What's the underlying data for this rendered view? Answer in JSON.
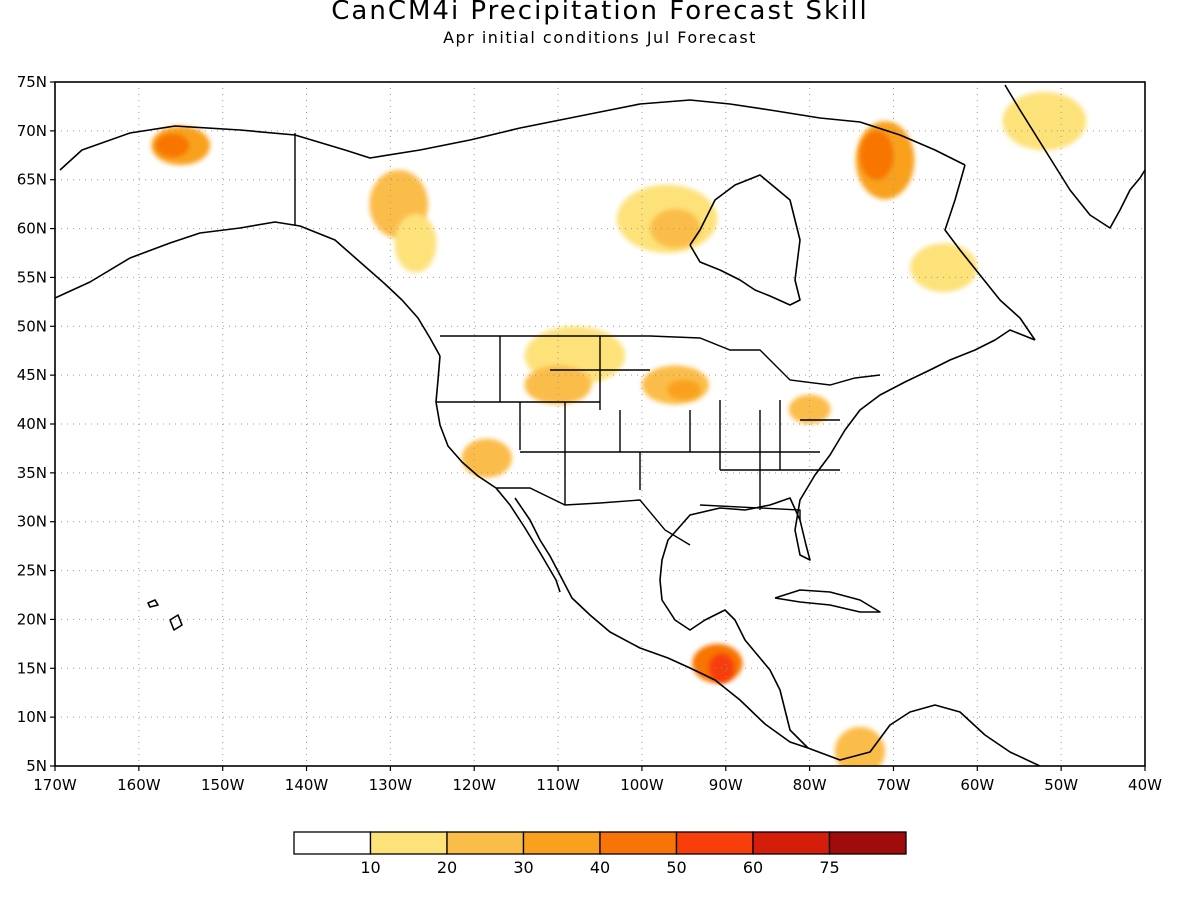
{
  "title": "CanCM4i Precipitation Forecast Skill",
  "subtitle": "Apr initial conditions   Jul Forecast",
  "map": {
    "lon_range": [
      -170,
      -40
    ],
    "lat_range": [
      5,
      75
    ],
    "lon_tick_labels": [
      "170W",
      "160W",
      "150W",
      "140W",
      "130W",
      "120W",
      "110W",
      "100W",
      "90W",
      "80W",
      "70W",
      "60W",
      "50W",
      "40W"
    ],
    "lat_tick_labels": [
      "5N",
      "10N",
      "15N",
      "20N",
      "25N",
      "30N",
      "35N",
      "40N",
      "45N",
      "50N",
      "55N",
      "60N",
      "65N",
      "70N",
      "75N"
    ],
    "grid": "dotted"
  },
  "colorbar": {
    "labels": [
      "10",
      "20",
      "30",
      "40",
      "50",
      "60",
      "75"
    ],
    "colors": [
      "#ffffff",
      "#fde27a",
      "#fbbd4a",
      "#f9a11c",
      "#f87406",
      "#f83e0a",
      "#d41e0a",
      "#a00b0b"
    ]
  },
  "skill_regions": [
    {
      "lon": -155,
      "lat": 68.5,
      "rx": 3.5,
      "ry": 2.0,
      "level": 3
    },
    {
      "lon": -156,
      "lat": 68.5,
      "rx": 2.0,
      "ry": 1.2,
      "level": 4
    },
    {
      "lon": -129,
      "lat": 62.5,
      "rx": 3.5,
      "ry": 3.5,
      "level": 2
    },
    {
      "lon": -127,
      "lat": 58.5,
      "rx": 2.5,
      "ry": 3.0,
      "level": 1
    },
    {
      "lon": -97,
      "lat": 61,
      "rx": 6,
      "ry": 3.5,
      "level": 1
    },
    {
      "lon": -96,
      "lat": 60,
      "rx": 3,
      "ry": 2,
      "level": 2
    },
    {
      "lon": -71,
      "lat": 67,
      "rx": 3.5,
      "ry": 4.0,
      "level": 3
    },
    {
      "lon": -72,
      "lat": 67.5,
      "rx": 2,
      "ry": 2.5,
      "level": 4
    },
    {
      "lon": -64,
      "lat": 56,
      "rx": 4,
      "ry": 2.5,
      "level": 1
    },
    {
      "lon": -108,
      "lat": 47,
      "rx": 6,
      "ry": 3,
      "level": 1
    },
    {
      "lon": -110,
      "lat": 44,
      "rx": 4,
      "ry": 2,
      "level": 2
    },
    {
      "lon": -96,
      "lat": 44,
      "rx": 4,
      "ry": 2,
      "level": 2
    },
    {
      "lon": -95,
      "lat": 43.5,
      "rx": 2,
      "ry": 1,
      "level": 3
    },
    {
      "lon": -118.5,
      "lat": 36.5,
      "rx": 3,
      "ry": 2,
      "level": 2
    },
    {
      "lon": -80,
      "lat": 41.5,
      "rx": 2.5,
      "ry": 1.5,
      "level": 2
    },
    {
      "lon": -91,
      "lat": 15.5,
      "rx": 3,
      "ry": 2,
      "level": 4
    },
    {
      "lon": -90.5,
      "lat": 15,
      "rx": 1.5,
      "ry": 1.5,
      "level": 5
    },
    {
      "lon": -74,
      "lat": 6.5,
      "rx": 3,
      "ry": 2.5,
      "level": 2
    },
    {
      "lon": -52,
      "lat": 71,
      "rx": 5,
      "ry": 3,
      "level": 1
    }
  ]
}
